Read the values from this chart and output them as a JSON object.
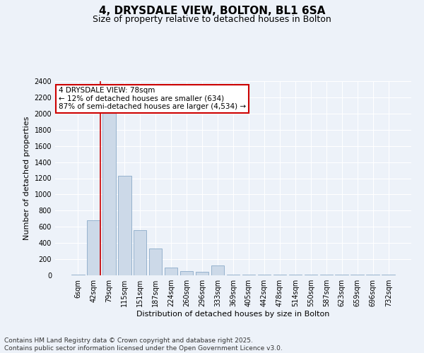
{
  "title_line1": "4, DRYSDALE VIEW, BOLTON, BL1 6SA",
  "title_line2": "Size of property relative to detached houses in Bolton",
  "xlabel": "Distribution of detached houses by size in Bolton",
  "ylabel": "Number of detached properties",
  "bar_color": "#ccd9e8",
  "bar_edge_color": "#8aaac8",
  "bar_edge_width": 0.6,
  "marker_line_color": "#cc0000",
  "annotation_box_color": "#cc0000",
  "background_color": "#edf2f9",
  "grid_color": "#ffffff",
  "categories": [
    "6sqm",
    "42sqm",
    "79sqm",
    "115sqm",
    "151sqm",
    "187sqm",
    "224sqm",
    "260sqm",
    "296sqm",
    "333sqm",
    "369sqm",
    "405sqm",
    "442sqm",
    "478sqm",
    "514sqm",
    "550sqm",
    "587sqm",
    "623sqm",
    "659sqm",
    "696sqm",
    "732sqm"
  ],
  "values": [
    5,
    680,
    2050,
    1230,
    560,
    330,
    100,
    55,
    45,
    120,
    8,
    5,
    5,
    5,
    5,
    5,
    5,
    5,
    5,
    5,
    5
  ],
  "marker_bin_index": 1,
  "annotation_text": "4 DRYSDALE VIEW: 78sqm\n← 12% of detached houses are smaller (634)\n87% of semi-detached houses are larger (4,534) →",
  "ylim": [
    0,
    2400
  ],
  "yticks": [
    0,
    200,
    400,
    600,
    800,
    1000,
    1200,
    1400,
    1600,
    1800,
    2000,
    2200,
    2400
  ],
  "footnote": "Contains HM Land Registry data © Crown copyright and database right 2025.\nContains public sector information licensed under the Open Government Licence v3.0.",
  "title_fontsize": 11,
  "subtitle_fontsize": 9,
  "axis_label_fontsize": 8,
  "tick_fontsize": 7,
  "annotation_fontsize": 7.5,
  "footnote_fontsize": 6.5
}
